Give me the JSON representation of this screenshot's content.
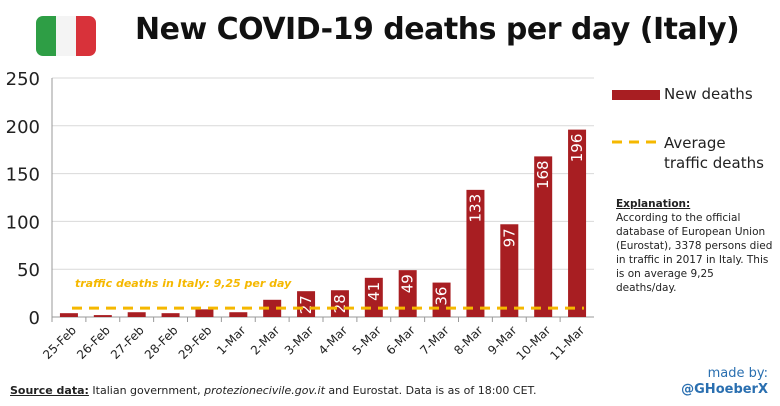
{
  "title": "New COVID-19 deaths per day (Italy)",
  "flag_colors": [
    "#2e9e45",
    "#f4f4f4",
    "#d8323a"
  ],
  "legend": {
    "bars": "New deaths",
    "line": "Average traffic deaths"
  },
  "explanation": {
    "heading": "Explanation:",
    "text": "According to the official database of European Union (Eurostat), 3378 persons died in traffic in 2017 in Italy. This is on average 9,25 deaths/day."
  },
  "source": {
    "label": "Source data:",
    "pre": " Italian government, ",
    "italic": "protezionecivile.gov.it",
    "post": " and Eurostat. Data is as of 18:00 CET."
  },
  "credit": {
    "line1": "made by:",
    "line2": "@GHoeberX"
  },
  "chart_data": {
    "type": "bar",
    "title": "New COVID-19 deaths per day (Italy)",
    "categories": [
      "25-Feb",
      "26-Feb",
      "27-Feb",
      "28-Feb",
      "29-Feb",
      "1-Mar",
      "2-Mar",
      "3-Mar",
      "4-Mar",
      "5-Mar",
      "6-Mar",
      "7-Mar",
      "8-Mar",
      "9-Mar",
      "10-Mar",
      "11-Mar"
    ],
    "series": [
      {
        "name": "New deaths",
        "values": [
          4,
          2,
          5,
          4,
          8,
          5,
          18,
          27,
          28,
          41,
          49,
          36,
          133,
          97,
          168,
          196
        ],
        "color": "#a81e22"
      }
    ],
    "data_labels": [
      "",
      "",
      "",
      "",
      "",
      "",
      "",
      "27",
      "28",
      "41",
      "49",
      "36",
      "133",
      "97",
      "168",
      "196"
    ],
    "reference_line": {
      "name": "Average traffic deaths",
      "value": 9.25,
      "color": "#f5b800",
      "annotation": "traffic deaths in Italy: 9,25 per day"
    },
    "ylim": [
      0,
      250
    ],
    "yticks": [
      0,
      50,
      100,
      150,
      200,
      250
    ],
    "grid": true,
    "legend_position": "right"
  }
}
